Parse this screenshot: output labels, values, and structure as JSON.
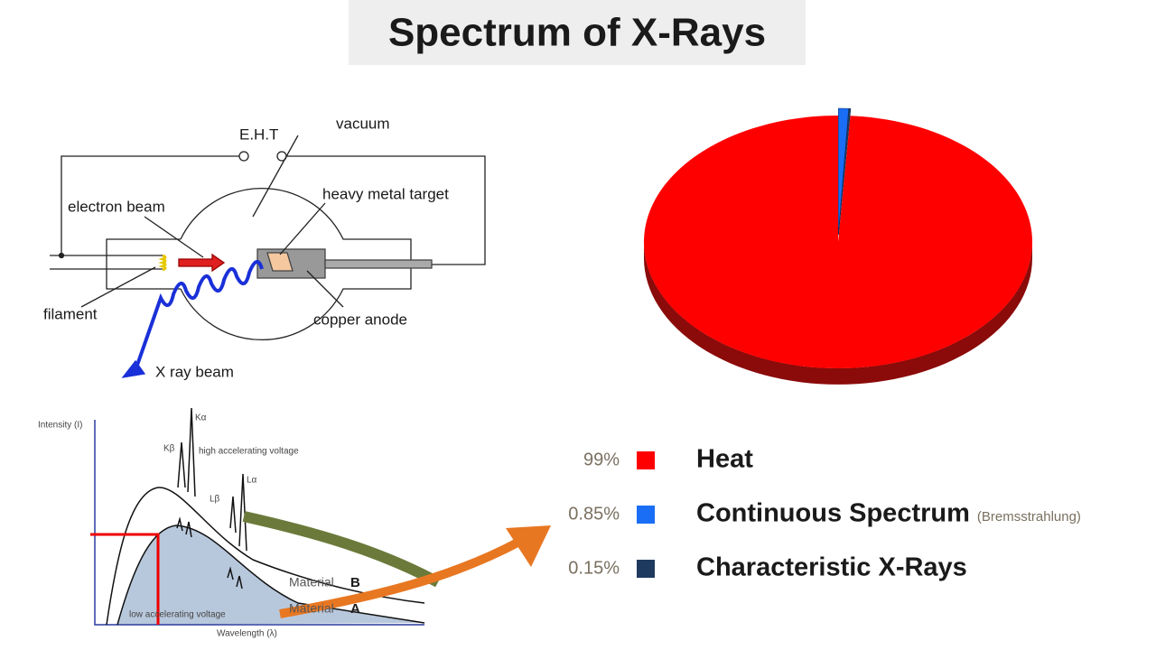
{
  "title": "Spectrum of X-Rays",
  "tube_diagram": {
    "eht": "E.H.T",
    "vacuum": "vacuum",
    "electron_beam": "electron beam",
    "target": "heavy metal target",
    "filament": "filament",
    "anode": "copper anode",
    "xray_beam": "X ray beam"
  },
  "spectrum_graph": {
    "y_label": "Intensity (I)",
    "x_label": "Wavelength (λ)",
    "k_alpha": "Kα",
    "k_beta": "Kβ",
    "l_alpha": "Lα",
    "l_beta": "Lβ",
    "high_voltage": "high accelerating voltage",
    "low_voltage": "low accelerating voltage",
    "material_b": "Material",
    "b": "B",
    "material_a": "Material",
    "a": "A"
  },
  "bremsstrahlung_note": "(Bremsstrahlung)",
  "chart_data": {
    "type": "pie",
    "categories": [
      "Heat",
      "Continuous Spectrum",
      "Characteristic X-Rays"
    ],
    "values": [
      99,
      0.85,
      0.15
    ],
    "value_labels": [
      "99%",
      "0.85%",
      "0.15%"
    ],
    "colors": [
      "#ff0000",
      "#1a6ef5",
      "#1f3a5f"
    ]
  }
}
